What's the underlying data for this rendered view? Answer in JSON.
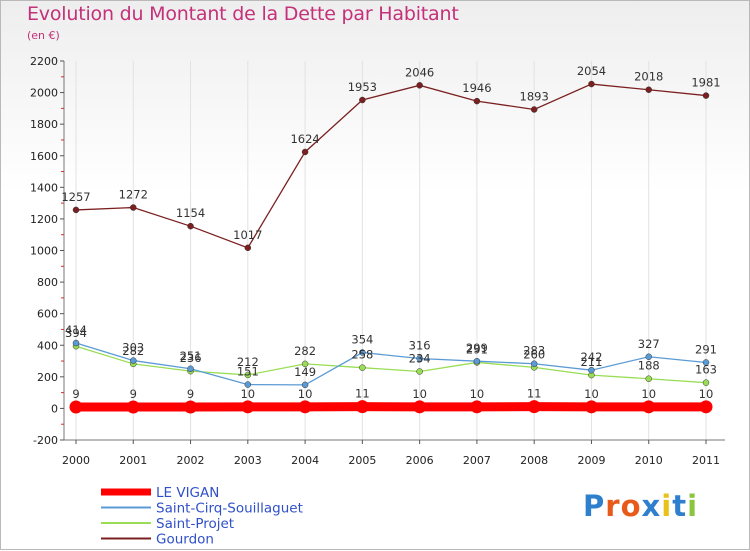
{
  "header": {
    "title": "Evolution du Montant de la Dette par Habitant",
    "subtitle": "(en €)"
  },
  "logo": {
    "letters": [
      "P",
      "r",
      "o",
      "x",
      "i",
      "t",
      "i"
    ],
    "colors": [
      "#2e7fce",
      "#e85a1a",
      "#e85a1a",
      "#2e7fce",
      "#e8c21a",
      "#2e7fce",
      "#8bc53f"
    ]
  },
  "chart_data": {
    "type": "line",
    "title": "Evolution du Montant de la Dette par Habitant",
    "subtitle": "(en €)",
    "x": [
      "2000",
      "2001",
      "2002",
      "2003",
      "2004",
      "2005",
      "2006",
      "2007",
      "2008",
      "2009",
      "2010",
      "2011"
    ],
    "ylim": [
      -200,
      2200
    ],
    "yticks": [
      -200,
      0,
      200,
      400,
      600,
      800,
      1000,
      1200,
      1400,
      1600,
      1800,
      2000,
      2200
    ],
    "grid": "vertical",
    "legend": "bottom-left",
    "series": [
      {
        "name": "LE VIGAN",
        "values": [
          9,
          9,
          9,
          10,
          10,
          11,
          10,
          10,
          11,
          10,
          10,
          10
        ],
        "color": "#ff0000",
        "labels": "above"
      },
      {
        "name": "Saint-Cirq-Souillaguet",
        "values": [
          414,
          303,
          251,
          151,
          149,
          354,
          316,
          299,
          283,
          242,
          327,
          291
        ],
        "color": "#5b9bd5",
        "labels": "above"
      },
      {
        "name": "Saint-Projet",
        "values": [
          394,
          282,
          236,
          212,
          282,
          258,
          234,
          291,
          260,
          211,
          188,
          163
        ],
        "color": "#99dd55",
        "labels": "above"
      },
      {
        "name": "Gourdon",
        "values": [
          1257,
          1272,
          1154,
          1017,
          1624,
          1953,
          2046,
          1946,
          1893,
          2054,
          2018,
          1981
        ],
        "color": "#7b2020",
        "labels": "above"
      }
    ]
  }
}
